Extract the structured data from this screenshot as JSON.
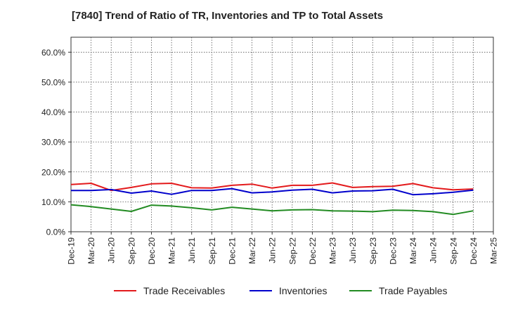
{
  "chart_data": {
    "type": "line",
    "title": "[7840]  Trend of Ratio of TR, Inventories and TP to Total Assets",
    "xlabel": "",
    "ylabel": "",
    "ylim": [
      0,
      65
    ],
    "y_ticks": [
      0,
      10,
      20,
      30,
      40,
      50,
      60
    ],
    "y_tick_labels": [
      "0.0%",
      "10.0%",
      "20.0%",
      "30.0%",
      "40.0%",
      "50.0%",
      "60.0%"
    ],
    "x_tick_labels": [
      "Dec-19",
      "Mar-20",
      "Jun-20",
      "Sep-20",
      "Dec-20",
      "Mar-21",
      "Jun-21",
      "Sep-21",
      "Dec-21",
      "Mar-22",
      "Jun-22",
      "Sep-22",
      "Dec-22",
      "Mar-23",
      "Jun-23",
      "Sep-23",
      "Dec-23",
      "Mar-24",
      "Jun-24",
      "Sep-24",
      "Dec-24",
      "Mar-25"
    ],
    "grid": true,
    "legend_position": "bottom",
    "categories": [
      "Dec-19",
      "Mar-20",
      "Jun-20",
      "Sep-20",
      "Dec-20",
      "Mar-21",
      "Jun-21",
      "Sep-21",
      "Dec-21",
      "Mar-22",
      "Jun-22",
      "Sep-22",
      "Dec-22",
      "Mar-23",
      "Jun-23",
      "Sep-23",
      "Dec-23",
      "Mar-24",
      "Jun-24",
      "Sep-24",
      "Dec-24"
    ],
    "series": [
      {
        "name": "Trade Receivables",
        "color": "#e31a1c",
        "values": [
          15.8,
          16.2,
          13.8,
          14.8,
          16.0,
          16.2,
          14.7,
          14.6,
          15.5,
          15.9,
          14.6,
          15.5,
          15.5,
          16.3,
          14.8,
          15.1,
          15.2,
          16.1,
          14.7,
          14.0,
          14.3
        ]
      },
      {
        "name": "Inventories",
        "color": "#0000cc",
        "values": [
          13.8,
          13.8,
          14.1,
          12.9,
          13.6,
          12.5,
          13.8,
          13.8,
          14.4,
          13.0,
          13.3,
          13.9,
          14.2,
          13.0,
          13.6,
          13.7,
          14.2,
          12.4,
          12.7,
          13.2,
          13.9
        ]
      },
      {
        "name": "Trade Payables",
        "color": "#228b22",
        "values": [
          9.0,
          8.4,
          7.6,
          6.8,
          8.9,
          8.6,
          8.0,
          7.3,
          8.2,
          7.6,
          7.0,
          7.3,
          7.4,
          7.0,
          6.9,
          6.7,
          7.2,
          7.1,
          6.7,
          5.8,
          7.0
        ]
      }
    ]
  }
}
